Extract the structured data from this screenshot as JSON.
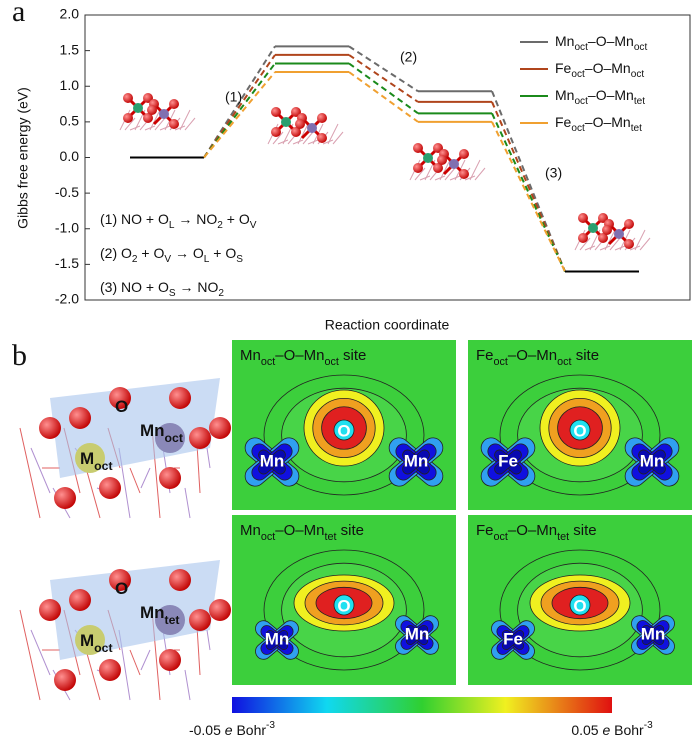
{
  "chart_data": {
    "type": "energy-levels",
    "ylabel": "Gibbs free energy (eV)",
    "xlabel": "Reaction coordinate",
    "ylim": [
      -2,
      2
    ],
    "yticks": [
      {
        "value": 2,
        "label": "2.0"
      },
      {
        "value": 1.5,
        "label": "1.5"
      },
      {
        "value": 1,
        "label": "1.0"
      },
      {
        "value": 0.5,
        "label": "0.5"
      },
      {
        "value": 0,
        "label": "0.0"
      },
      {
        "value": -0.5,
        "label": "-0.5"
      },
      {
        "value": -1,
        "label": "-1.0"
      },
      {
        "value": -1.5,
        "label": "-1.5"
      },
      {
        "value": -2,
        "label": "-2.0"
      }
    ],
    "endpoint_color": "#000000",
    "series": [
      {
        "name": [
          "Mn",
          "oct",
          "–O–Mn",
          "oct"
        ],
        "color": "#6b6b6b",
        "values": [
          0,
          1.56,
          0.93,
          -1.6
        ]
      },
      {
        "name": [
          "Fe",
          "oct",
          "–O–Mn",
          "oct"
        ],
        "color": "#b0451c",
        "values": [
          0,
          1.44,
          0.78,
          -1.6
        ]
      },
      {
        "name": [
          "Mn",
          "oct",
          "–O–Mn",
          "tet"
        ],
        "color": "#1b8a1b",
        "values": [
          0,
          1.32,
          0.62,
          -1.6
        ]
      },
      {
        "name": [
          "Fe",
          "oct",
          "–O–Mn",
          "tet"
        ],
        "color": "#f0a030",
        "values": [
          0,
          1.2,
          0.5,
          -1.6
        ]
      }
    ],
    "annotations": [
      "(1)",
      "(2)",
      "(3)"
    ],
    "reactions": [
      [
        "(1) NO + O",
        "L",
        " → NO",
        "2",
        " + O",
        "V"
      ],
      [
        "(2) O",
        "2",
        " + O",
        "V",
        " → O",
        "L",
        " + O",
        "S"
      ],
      [
        "(3) NO + O",
        "S",
        " → NO",
        "2"
      ]
    ]
  },
  "panels": [
    "a",
    "b"
  ],
  "structures": [
    [
      [
        "M",
        "oct"
      ],
      [
        "Mn",
        "oct"
      ],
      [
        "O"
      ]
    ],
    [
      [
        "M",
        "oct"
      ],
      [
        "Mn",
        "tet"
      ],
      [
        "O"
      ]
    ]
  ],
  "maps": [
    {
      "title": [
        "Mn",
        "oct",
        "–O–Mn",
        "oct",
        " site"
      ],
      "atoms": [
        "Mn",
        "O",
        "Mn"
      ]
    },
    {
      "title": [
        "Fe",
        "oct",
        "–O–Mn",
        "oct",
        " site"
      ],
      "atoms": [
        "Fe",
        "O",
        "Mn"
      ]
    },
    {
      "title": [
        "Mn",
        "oct",
        "–O–Mn",
        "tet",
        " site"
      ],
      "atoms": [
        "Mn",
        "O",
        "Mn"
      ]
    },
    {
      "title": [
        "Fe",
        "oct",
        "–O–Mn",
        "tet",
        " site"
      ],
      "atoms": [
        "Fe",
        "O",
        "Mn"
      ]
    }
  ],
  "colorbar": {
    "min": [
      "-0.05 ",
      "e",
      " Bohr",
      "-3"
    ],
    "max": [
      "0.05 ",
      "e",
      " Bohr",
      "-3"
    ]
  }
}
